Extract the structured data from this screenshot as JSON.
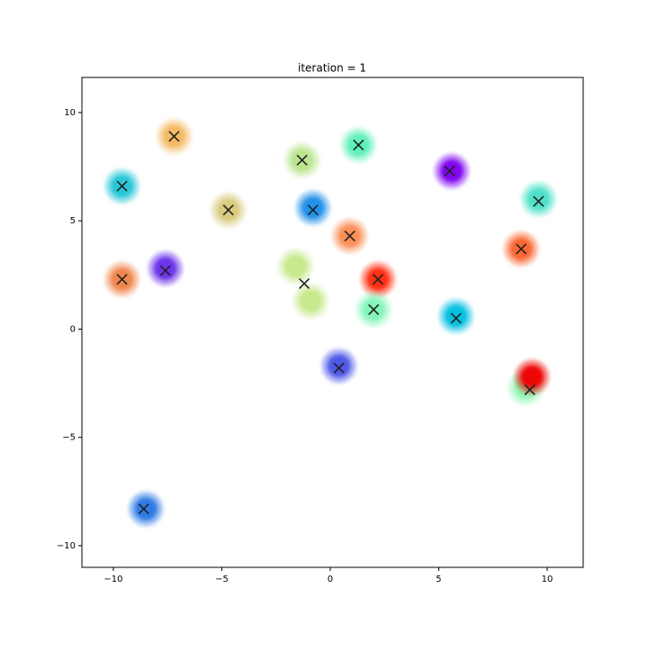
{
  "chart_data": {
    "type": "scatter",
    "title": "iteration = 1",
    "xlim": [
      -11.45,
      11.66
    ],
    "ylim": [
      -11.0,
      11.62
    ],
    "xticks": [
      {
        "value": -10,
        "label": "−10"
      },
      {
        "value": -5,
        "label": "−5"
      },
      0,
      5,
      10
    ],
    "yticks": [
      {
        "value": -10,
        "label": "−10"
      },
      {
        "value": -5,
        "label": "−5"
      },
      0,
      5,
      10
    ],
    "series": [
      {
        "marker": "cluster",
        "x": [
          -7.2,
          -9.6,
          -4.7,
          -9.6,
          -7.6,
          -1.3,
          1.3,
          -0.8,
          0.9,
          5.6,
          9.6,
          8.8,
          -1.6,
          -0.9,
          2.2,
          2.0,
          5.8,
          0.4,
          9.0,
          9.3,
          -8.5
        ],
        "y": [
          8.9,
          6.6,
          5.5,
          2.3,
          2.8,
          7.8,
          8.5,
          5.6,
          4.3,
          7.3,
          6.0,
          3.7,
          2.9,
          1.3,
          2.3,
          0.9,
          0.6,
          -1.7,
          -2.7,
          -2.2,
          -8.3
        ],
        "colors": [
          "#f4b860",
          "#22c5d6",
          "#d8c97a",
          "#f0824a",
          "#6b2ee8",
          "#b7e48a",
          "#5cf0b8",
          "#1f8ee8",
          "#f98c52",
          "#7d00f0",
          "#4be0c8",
          "#f9642f",
          "#c6e88a",
          "#c6e88a",
          "#ff2a10",
          "#80f5b8",
          "#00bfe0",
          "#4b55e6",
          "#8ff5b0",
          "#ee0000",
          "#2a78e6"
        ]
      },
      {
        "marker": "x",
        "color": "#222222",
        "x": [
          -7.2,
          -9.6,
          -4.7,
          -9.6,
          -7.6,
          -1.3,
          1.3,
          -0.8,
          0.9,
          5.5,
          9.6,
          8.8,
          -1.2,
          2.2,
          2.0,
          5.8,
          0.4,
          9.2,
          -8.6
        ],
        "y": [
          8.9,
          6.6,
          5.5,
          2.3,
          2.7,
          7.8,
          8.5,
          5.5,
          4.3,
          7.3,
          5.9,
          3.7,
          2.1,
          2.3,
          0.9,
          0.5,
          -1.8,
          -2.8,
          -8.3
        ]
      }
    ]
  }
}
